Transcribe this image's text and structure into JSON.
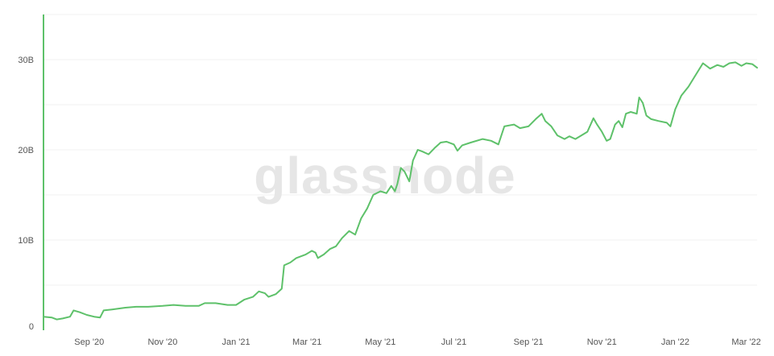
{
  "watermark": "glassnode",
  "colors": {
    "line": "#5ec16a",
    "grid": "#f0f0f0",
    "axis_text": "#555555",
    "watermark": "#e6e6e6"
  },
  "chart_data": {
    "type": "line",
    "title": "",
    "xlabel": "",
    "ylabel": "",
    "grid": true,
    "xlim": [
      "2020-07-25",
      "2022-03-10"
    ],
    "ylim": [
      0,
      35000000000
    ],
    "yticks": [
      {
        "value": 0,
        "label": "0"
      },
      {
        "value": 10000000000,
        "label": "10B"
      },
      {
        "value": 20000000000,
        "label": "20B"
      },
      {
        "value": 30000000000,
        "label": "30B"
      }
    ],
    "xticks": [
      {
        "date": "2020-09-01",
        "label": "Sep '20"
      },
      {
        "date": "2020-11-01",
        "label": "Nov '20"
      },
      {
        "date": "2021-01-01",
        "label": "Jan '21"
      },
      {
        "date": "2021-03-01",
        "label": "Mar '21"
      },
      {
        "date": "2021-05-01",
        "label": "May '21"
      },
      {
        "date": "2021-07-01",
        "label": "Jul '21"
      },
      {
        "date": "2021-09-01",
        "label": "Sep '21"
      },
      {
        "date": "2021-11-01",
        "label": "Nov '21"
      },
      {
        "date": "2022-01-01",
        "label": "Jan '22"
      },
      {
        "date": "2022-03-01",
        "label": "Mar '22"
      }
    ],
    "series": [
      {
        "color": "#5ec16a",
        "points": [
          [
            "2020-07-25",
            1500000000.0
          ],
          [
            "2020-08-01",
            1400000000.0
          ],
          [
            "2020-08-05",
            1200000000.0
          ],
          [
            "2020-08-10",
            1300000000.0
          ],
          [
            "2020-08-16",
            1500000000.0
          ],
          [
            "2020-08-19",
            2200000000.0
          ],
          [
            "2020-08-24",
            2000000000.0
          ],
          [
            "2020-08-30",
            1700000000.0
          ],
          [
            "2020-09-05",
            1500000000.0
          ],
          [
            "2020-09-10",
            1400000000.0
          ],
          [
            "2020-09-13",
            2200000000.0
          ],
          [
            "2020-09-20",
            2300000000.0
          ],
          [
            "2020-10-01",
            2500000000.0
          ],
          [
            "2020-10-10",
            2600000000.0
          ],
          [
            "2020-10-20",
            2600000000.0
          ],
          [
            "2020-11-01",
            2700000000.0
          ],
          [
            "2020-11-10",
            2800000000.0
          ],
          [
            "2020-11-20",
            2700000000.0
          ],
          [
            "2020-12-01",
            2700000000.0
          ],
          [
            "2020-12-06",
            3000000000.0
          ],
          [
            "2020-12-15",
            3000000000.0
          ],
          [
            "2020-12-25",
            2800000000.0
          ],
          [
            "2021-01-01",
            2800000000.0
          ],
          [
            "2021-01-08",
            3400000000.0
          ],
          [
            "2021-01-15",
            3700000000.0
          ],
          [
            "2021-01-20",
            4300000000.0
          ],
          [
            "2021-01-25",
            4100000000.0
          ],
          [
            "2021-01-28",
            3700000000.0
          ],
          [
            "2021-02-03",
            4000000000.0
          ],
          [
            "2021-02-08",
            4600000000.0
          ],
          [
            "2021-02-10",
            7200000000.0
          ],
          [
            "2021-02-15",
            7500000000.0
          ],
          [
            "2021-02-20",
            8000000000.0
          ],
          [
            "2021-02-28",
            8400000000.0
          ],
          [
            "2021-03-05",
            8800000000.0
          ],
          [
            "2021-03-08",
            8600000000.0
          ],
          [
            "2021-03-10",
            8000000000.0
          ],
          [
            "2021-03-15",
            8400000000.0
          ],
          [
            "2021-03-20",
            9000000000.0
          ],
          [
            "2021-03-25",
            9300000000.0
          ],
          [
            "2021-03-30",
            10200000000.0
          ],
          [
            "2021-04-05",
            11000000000.0
          ],
          [
            "2021-04-10",
            10600000000.0
          ],
          [
            "2021-04-15",
            12400000000.0
          ],
          [
            "2021-04-20",
            13500000000.0
          ],
          [
            "2021-04-25",
            15000000000.0
          ],
          [
            "2021-05-01",
            15400000000.0
          ],
          [
            "2021-05-06",
            15200000000.0
          ],
          [
            "2021-05-10",
            16000000000.0
          ],
          [
            "2021-05-13",
            15400000000.0
          ],
          [
            "2021-05-15",
            16200000000.0
          ],
          [
            "2021-05-18",
            18000000000.0
          ],
          [
            "2021-05-21",
            17600000000.0
          ],
          [
            "2021-05-25",
            16500000000.0
          ],
          [
            "2021-05-28",
            18800000000.0
          ],
          [
            "2021-06-01",
            20000000000.0
          ],
          [
            "2021-06-05",
            19800000000.0
          ],
          [
            "2021-06-10",
            19500000000.0
          ],
          [
            "2021-06-15",
            20200000000.0
          ],
          [
            "2021-06-20",
            20800000000.0
          ],
          [
            "2021-06-25",
            20900000000.0
          ],
          [
            "2021-07-01",
            20600000000.0
          ],
          [
            "2021-07-04",
            19900000000.0
          ],
          [
            "2021-07-08",
            20500000000.0
          ],
          [
            "2021-07-15",
            20800000000.0
          ],
          [
            "2021-07-25",
            21200000000.0
          ],
          [
            "2021-08-01",
            21000000000.0
          ],
          [
            "2021-08-07",
            20600000000.0
          ],
          [
            "2021-08-12",
            22600000000.0
          ],
          [
            "2021-08-20",
            22800000000.0
          ],
          [
            "2021-08-25",
            22400000000.0
          ],
          [
            "2021-09-01",
            22600000000.0
          ],
          [
            "2021-09-07",
            23400000000.0
          ],
          [
            "2021-09-12",
            24000000000.0
          ],
          [
            "2021-09-15",
            23200000000.0
          ],
          [
            "2021-09-20",
            22600000000.0
          ],
          [
            "2021-09-25",
            21600000000.0
          ],
          [
            "2021-10-01",
            21200000000.0
          ],
          [
            "2021-10-05",
            21500000000.0
          ],
          [
            "2021-10-10",
            21200000000.0
          ],
          [
            "2021-10-15",
            21600000000.0
          ],
          [
            "2021-10-20",
            22000000000.0
          ],
          [
            "2021-10-25",
            23500000000.0
          ],
          [
            "2021-10-28",
            22800000000.0
          ],
          [
            "2021-11-01",
            22000000000.0
          ],
          [
            "2021-11-05",
            21000000000.0
          ],
          [
            "2021-11-08",
            21200000000.0
          ],
          [
            "2021-11-12",
            22800000000.0
          ],
          [
            "2021-11-15",
            23200000000.0
          ],
          [
            "2021-11-18",
            22500000000.0
          ],
          [
            "2021-11-21",
            24000000000.0
          ],
          [
            "2021-11-25",
            24200000000.0
          ],
          [
            "2021-11-30",
            24000000000.0
          ],
          [
            "2021-12-02",
            25800000000.0
          ],
          [
            "2021-12-05",
            25200000000.0
          ],
          [
            "2021-12-08",
            23800000000.0
          ],
          [
            "2021-12-12",
            23400000000.0
          ],
          [
            "2021-12-18",
            23200000000.0
          ],
          [
            "2021-12-25",
            23000000000.0
          ],
          [
            "2021-12-28",
            22600000000.0
          ],
          [
            "2022-01-01",
            24500000000.0
          ],
          [
            "2022-01-06",
            26000000000.0
          ],
          [
            "2022-01-12",
            27000000000.0
          ],
          [
            "2022-01-18",
            28300000000.0
          ],
          [
            "2022-01-24",
            29600000000.0
          ],
          [
            "2022-01-30",
            29000000000.0
          ],
          [
            "2022-02-05",
            29400000000.0
          ],
          [
            "2022-02-10",
            29200000000.0
          ],
          [
            "2022-02-15",
            29600000000.0
          ],
          [
            "2022-02-20",
            29700000000.0
          ],
          [
            "2022-02-25",
            29300000000.0
          ],
          [
            "2022-03-01",
            29600000000.0
          ],
          [
            "2022-03-06",
            29500000000.0
          ],
          [
            "2022-03-10",
            29100000000.0
          ]
        ]
      }
    ]
  }
}
